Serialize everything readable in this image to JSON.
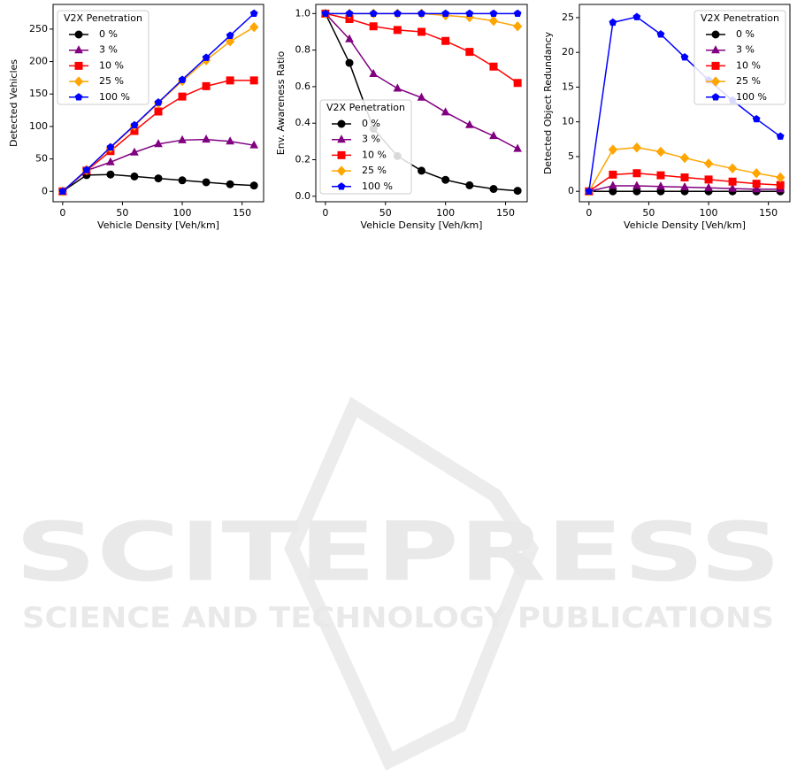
{
  "chart_data": [
    {
      "type": "line",
      "xlabel": "Vehicle Density [Veh/km]",
      "ylabel": "Detected Vehicles",
      "x": [
        0,
        20,
        40,
        60,
        80,
        100,
        120,
        140,
        160
      ],
      "xlim": [
        -8,
        168
      ],
      "xticks": [
        0,
        50,
        100,
        150
      ],
      "ylim": [
        -16,
        288
      ],
      "yticks": [
        0,
        50,
        100,
        150,
        200,
        250
      ],
      "grid": false,
      "legend_title": "V2X Penetration",
      "legend_corner": "upper left",
      "series": [
        {
          "name": "0 %",
          "color": "#000000",
          "marker": "circle",
          "values": [
            0,
            25,
            26,
            23,
            20,
            17,
            14,
            11,
            9
          ]
        },
        {
          "name": "3 %",
          "color": "#800080",
          "marker": "triangle",
          "values": [
            0,
            32,
            45,
            60,
            73,
            79,
            80,
            77,
            71
          ]
        },
        {
          "name": "10 %",
          "color": "#ff0000",
          "marker": "square",
          "values": [
            0,
            32,
            62,
            93,
            123,
            146,
            162,
            171,
            171
          ]
        },
        {
          "name": "25 %",
          "color": "#ffa500",
          "marker": "diamond",
          "values": [
            0,
            33,
            67,
            101,
            136,
            170,
            202,
            231,
            253
          ]
        },
        {
          "name": "100 %",
          "color": "#0000ff",
          "marker": "pentagon",
          "values": [
            0,
            33,
            68,
            102,
            137,
            172,
            206,
            240,
            274
          ]
        }
      ]
    },
    {
      "type": "line",
      "xlabel": "Vehicle Density [Veh/km]",
      "ylabel": "Env. Awareness Ratio",
      "x": [
        0,
        20,
        40,
        60,
        80,
        100,
        120,
        140,
        160
      ],
      "xlim": [
        -8,
        168
      ],
      "xticks": [
        0,
        50,
        100,
        150
      ],
      "ylim": [
        -0.03,
        1.05
      ],
      "yticks": [
        {
          "value": 0,
          "label": "0.0"
        },
        0.2,
        0.4,
        0.6,
        0.8,
        {
          "value": 1,
          "label": "1.0"
        }
      ],
      "grid": false,
      "legend_title": "V2X Penetration",
      "legend_corner": "lower left",
      "series": [
        {
          "name": "0 %",
          "color": "#000000",
          "marker": "circle",
          "values": [
            1.0,
            0.73,
            0.37,
            0.22,
            0.14,
            0.09,
            0.06,
            0.04,
            0.03
          ]
        },
        {
          "name": "3 %",
          "color": "#800080",
          "marker": "triangle",
          "values": [
            1.0,
            0.86,
            0.67,
            0.59,
            0.54,
            0.46,
            0.39,
            0.33,
            0.26
          ]
        },
        {
          "name": "10 %",
          "color": "#ff0000",
          "marker": "square",
          "values": [
            1.0,
            0.97,
            0.93,
            0.91,
            0.9,
            0.85,
            0.79,
            0.71,
            0.62
          ]
        },
        {
          "name": "25 %",
          "color": "#ffa500",
          "marker": "diamond",
          "values": [
            1.0,
            1.0,
            1.0,
            1.0,
            1.0,
            0.99,
            0.98,
            0.96,
            0.93
          ]
        },
        {
          "name": "100 %",
          "color": "#0000ff",
          "marker": "pentagon",
          "values": [
            1.0,
            1.0,
            1.0,
            1.0,
            1.0,
            1.0,
            1.0,
            1.0,
            1.0
          ]
        }
      ]
    },
    {
      "type": "line",
      "xlabel": "Vehicle Density [Veh/km]",
      "ylabel": "Detected Object Redundancy",
      "x": [
        0,
        20,
        40,
        60,
        80,
        100,
        120,
        140,
        160
      ],
      "xlim": [
        -8,
        168
      ],
      "xticks": [
        0,
        50,
        100,
        150
      ],
      "ylim": [
        -1.5,
        26.9
      ],
      "yticks": [
        0,
        5,
        10,
        15,
        20,
        25
      ],
      "grid": false,
      "legend_title": "V2X Penetration",
      "legend_corner": "upper right",
      "series": [
        {
          "name": "0 %",
          "color": "#000000",
          "marker": "circle",
          "values": [
            0,
            0,
            0,
            0,
            0,
            0,
            0,
            0,
            0
          ]
        },
        {
          "name": "3 %",
          "color": "#800080",
          "marker": "triangle",
          "values": [
            0,
            0.8,
            0.8,
            0.7,
            0.6,
            0.5,
            0.4,
            0.3,
            0.3
          ]
        },
        {
          "name": "10 %",
          "color": "#ff0000",
          "marker": "square",
          "values": [
            0,
            2.4,
            2.6,
            2.3,
            2.0,
            1.7,
            1.4,
            1.1,
            0.9
          ]
        },
        {
          "name": "25 %",
          "color": "#ffa500",
          "marker": "diamond",
          "values": [
            0,
            6.0,
            6.3,
            5.7,
            4.8,
            4.0,
            3.3,
            2.6,
            2.0
          ]
        },
        {
          "name": "100 %",
          "color": "#0000ff",
          "marker": "pentagon",
          "values": [
            0,
            24.3,
            25.1,
            22.6,
            19.3,
            16.0,
            13.1,
            10.4,
            7.9
          ]
        }
      ]
    }
  ],
  "watermark": {
    "title": "SCITEPRESS",
    "subtitle": "SCIENCE AND TECHNOLOGY PUBLICATIONS"
  }
}
